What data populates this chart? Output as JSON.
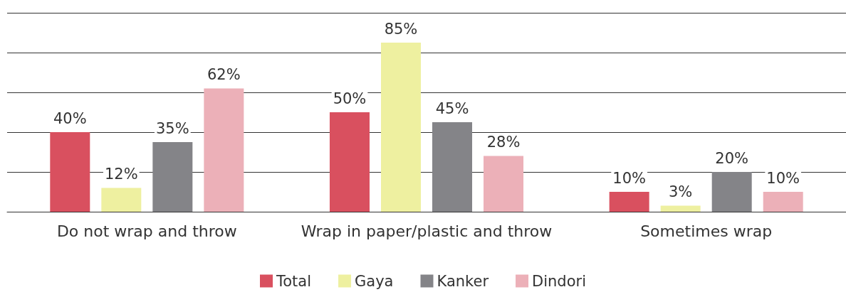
{
  "chart_data": {
    "type": "bar",
    "categories": [
      "Do not wrap and throw",
      "Wrap in paper/plastic and throw",
      "Sometimes wrap"
    ],
    "series": [
      {
        "name": "Total",
        "color": "#d9505f",
        "values": [
          40,
          50,
          10
        ],
        "value_labels": [
          "40%",
          "50%",
          "10%"
        ]
      },
      {
        "name": "Gaya",
        "color": "#eef0a0",
        "values": [
          12,
          85,
          3
        ],
        "value_labels": [
          "12%",
          "85%",
          "3%"
        ]
      },
      {
        "name": "Kanker",
        "color": "#848488",
        "values": [
          35,
          45,
          20
        ],
        "value_labels": [
          "35%",
          "45%",
          "20%"
        ]
      },
      {
        "name": "Dindori",
        "color": "#ecb0b8",
        "values": [
          62,
          28,
          10
        ],
        "value_labels": [
          "62%",
          "28%",
          "10%"
        ]
      }
    ],
    "grid": "y",
    "tick_labels": "x",
    "legend": "bottom"
  }
}
